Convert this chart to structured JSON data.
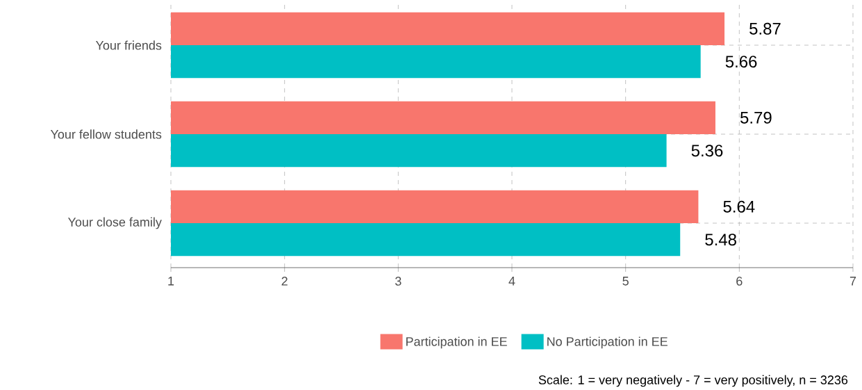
{
  "chart_data": {
    "type": "bar",
    "orientation": "horizontal",
    "categories": [
      "Your friends",
      "Your fellow students",
      "Your close family"
    ],
    "series": [
      {
        "name": "Participation in EE",
        "color": "#f8766d",
        "values": [
          5.87,
          5.79,
          5.64
        ]
      },
      {
        "name": "No Participation in EE",
        "color": "#00bfc4",
        "values": [
          5.66,
          5.36,
          5.48
        ]
      }
    ],
    "xlim": [
      1,
      7
    ],
    "xticks": [
      1,
      2,
      3,
      4,
      5,
      6,
      7
    ],
    "grid": true,
    "legend": "bottom",
    "data_labels": true,
    "annotations": [
      "Scale: 1 = very negatively - 7 = very positively, n = 3236"
    ]
  }
}
